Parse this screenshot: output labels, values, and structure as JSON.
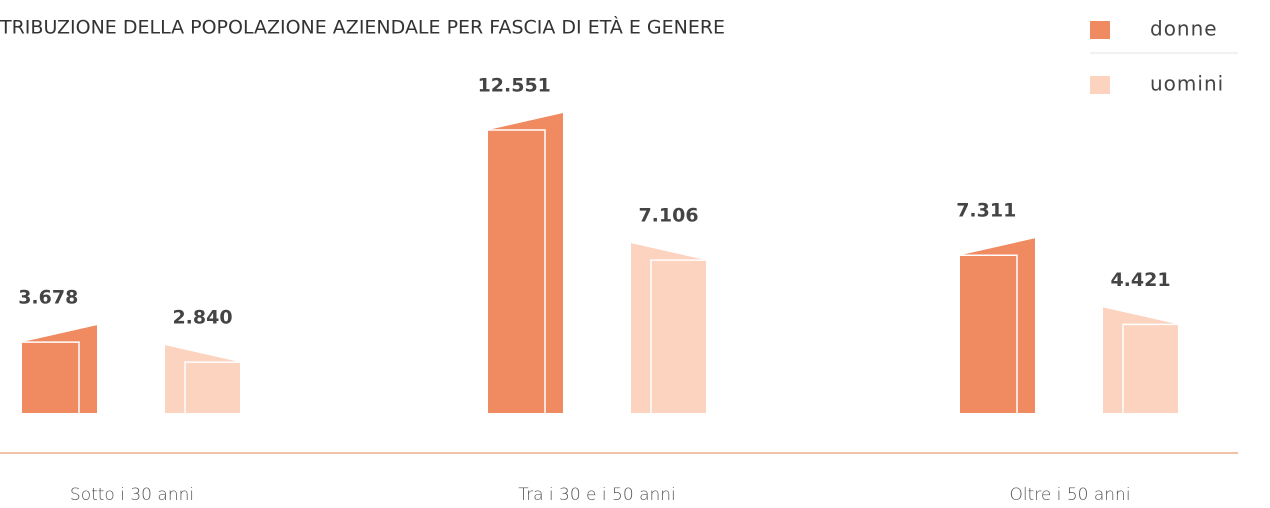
{
  "chart_data": {
    "type": "bar",
    "title": "TRIBUZIONE DELLA POPOLAZIONE AZIENDALE PER FASCIA DI ETÀ E GENERE",
    "categories": [
      "Sotto i 30 anni",
      "Tra i 30 e i 50 anni",
      "Oltre i 50 anni"
    ],
    "series": [
      {
        "name": "donne",
        "color": "#f08a60",
        "values": [
          3678,
          12551,
          7311
        ],
        "value_labels": [
          "3.678",
          "12.551",
          "7.311"
        ]
      },
      {
        "name": "uomini",
        "color": "#fcd3bf",
        "values": [
          2840,
          7106,
          4421
        ],
        "value_labels": [
          "2.840",
          "7.106",
          "4.421"
        ]
      }
    ]
  }
}
